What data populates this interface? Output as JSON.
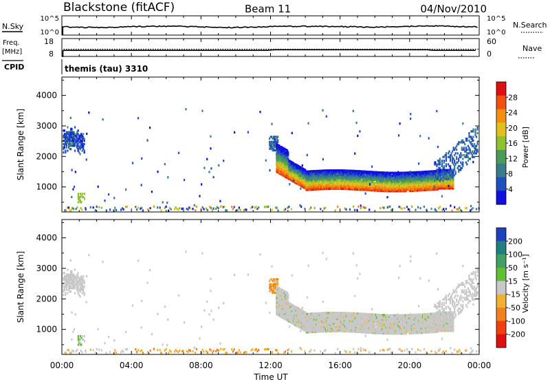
{
  "header": {
    "station": "Blackstone (fitACF)",
    "beam": "Beam 11",
    "date": "04/Nov/2010"
  },
  "nsky_panel": {
    "left_label": "N.Sky",
    "left_ticks": [
      "10^5",
      "10^0"
    ],
    "right_ticks": [
      "10^5",
      "10^0"
    ],
    "right_label": "N.Search"
  },
  "freq_panel": {
    "left_label_1": "Freq.",
    "left_label_2": "[MHz]",
    "left_ticks": [
      "18",
      "8"
    ],
    "right_ticks": [
      "60",
      "0"
    ],
    "right_label": "Nave"
  },
  "cpid_panel": {
    "label": "CPID",
    "program": "themis (tau) 3310"
  },
  "chart_data": [
    {
      "type": "heatmap",
      "name": "power",
      "ylabel": "Slant Range [km]",
      "yticks": [
        "1000",
        "2000",
        "3000",
        "4000"
      ],
      "ylim": [
        180,
        4600
      ],
      "colorbar_label": "Power [dB]",
      "colorbar_ticks": [
        "4",
        "8",
        "12",
        "16",
        "20",
        "24",
        "28"
      ],
      "colorbar_range": [
        0,
        32
      ],
      "colors": [
        "#1010e0",
        "#2050c0",
        "#3a7a8a",
        "#4a9a5a",
        "#90c030",
        "#e0c020",
        "#f09010",
        "#f05010",
        "#e01010"
      ],
      "description_bands": [
        {
          "time_h": [
            0.0,
            1.3
          ],
          "range_km": [
            2100,
            2800
          ],
          "level": 1
        },
        {
          "time_h": [
            12.3,
            22.5
          ],
          "range_km": [
            800,
            1700
          ],
          "level": 5
        },
        {
          "time_h": [
            0.0,
            24.0
          ],
          "range_km": [
            200,
            350
          ],
          "level": 2
        }
      ]
    },
    {
      "type": "heatmap",
      "name": "velocity",
      "ylabel": "Slant Range [km]",
      "yticks": [
        "1000",
        "2000",
        "3000",
        "4000"
      ],
      "ylim": [
        180,
        4600
      ],
      "colorbar_label": "Velocity [m s⁻¹]",
      "colorbar_ticks": [
        "200",
        "100",
        "50",
        "15",
        "-15",
        "-50",
        "-100",
        "-200"
      ],
      "colorbar_range": [
        -250,
        250
      ],
      "colors": [
        "#2040c0",
        "#208080",
        "#40a060",
        "#60c030",
        "#c8c8c8",
        "#f0b030",
        "#f08020",
        "#f04010",
        "#e01010"
      ]
    }
  ],
  "time_axis": {
    "label": "Time UT",
    "ticks": [
      "00:00",
      "04:00",
      "08:00",
      "12:00",
      "16:00",
      "20:00",
      "00:00"
    ],
    "range_h": [
      0,
      24
    ]
  }
}
